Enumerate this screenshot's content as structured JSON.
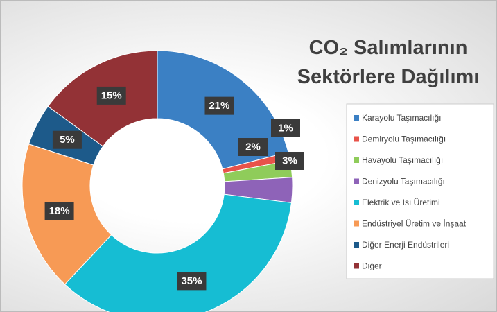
{
  "chart_data": {
    "type": "donut",
    "title": "CO₂ Salımlarının Sektörlere Dağılımı",
    "categories": [
      "Karayolu Taşımacılığı",
      "Demiryolu Taşımacılığı",
      "Havayolu Taşımacılığı",
      "Denizyolu Taşımacılığı",
      "Elektrik ve Isı Üretimi",
      "Endüstriyel Üretim ve İnşaat",
      "Diğer Enerji Endüstrileri",
      "Diğer"
    ],
    "values": [
      21,
      1,
      2,
      3,
      35,
      18,
      5,
      15
    ],
    "value_labels": [
      "21%",
      "1%",
      "2%",
      "3%",
      "35%",
      "18%",
      "5%",
      "15%"
    ],
    "colors": [
      "#3b80c4",
      "#e8534a",
      "#8fcc5a",
      "#8e63b8",
      "#16bdd3",
      "#f79a55",
      "#1d5a8a",
      "#933236"
    ],
    "legend": "right"
  }
}
